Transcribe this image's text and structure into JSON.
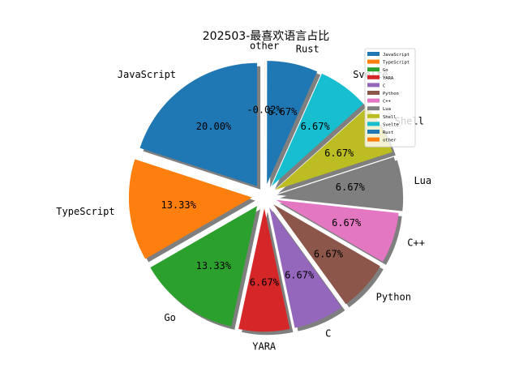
{
  "chart_data": {
    "type": "pie",
    "title": "202503-最喜欢语言占比",
    "categories": [
      "JavaScript",
      "TypeScript",
      "Go",
      "YARA",
      "C",
      "Python",
      "C++",
      "Lua",
      "Shell",
      "Svelte",
      "Rust",
      "other"
    ],
    "values": [
      20.0,
      13.33,
      13.33,
      6.67,
      6.67,
      6.67,
      6.67,
      6.67,
      6.67,
      6.67,
      6.67,
      -0.02
    ],
    "pct_labels": [
      "20.00%",
      "13.33%",
      "13.33%",
      "6.67%",
      "6.67%",
      "6.67%",
      "6.67%",
      "6.67%",
      "6.67%",
      "6.67%",
      "6.67%",
      "-0.02%"
    ],
    "colors": [
      "#1f77b4",
      "#ff7f0e",
      "#2ca02c",
      "#d62728",
      "#9467bd",
      "#8c564b",
      "#e377c2",
      "#7f7f7f",
      "#bcbd22",
      "#17becf",
      "#1f77b4",
      "#ff7f0e"
    ],
    "start_angle_deg": 90,
    "direction": "counterclockwise",
    "exploded": true,
    "shadow": true,
    "legend": {
      "position": "top-right",
      "entries": [
        "JavaScript",
        "TypeScript",
        "Go",
        "YARA",
        "C",
        "Python",
        "C++",
        "Lua",
        "Shell",
        "Svelte",
        "Rust",
        "other"
      ]
    }
  }
}
